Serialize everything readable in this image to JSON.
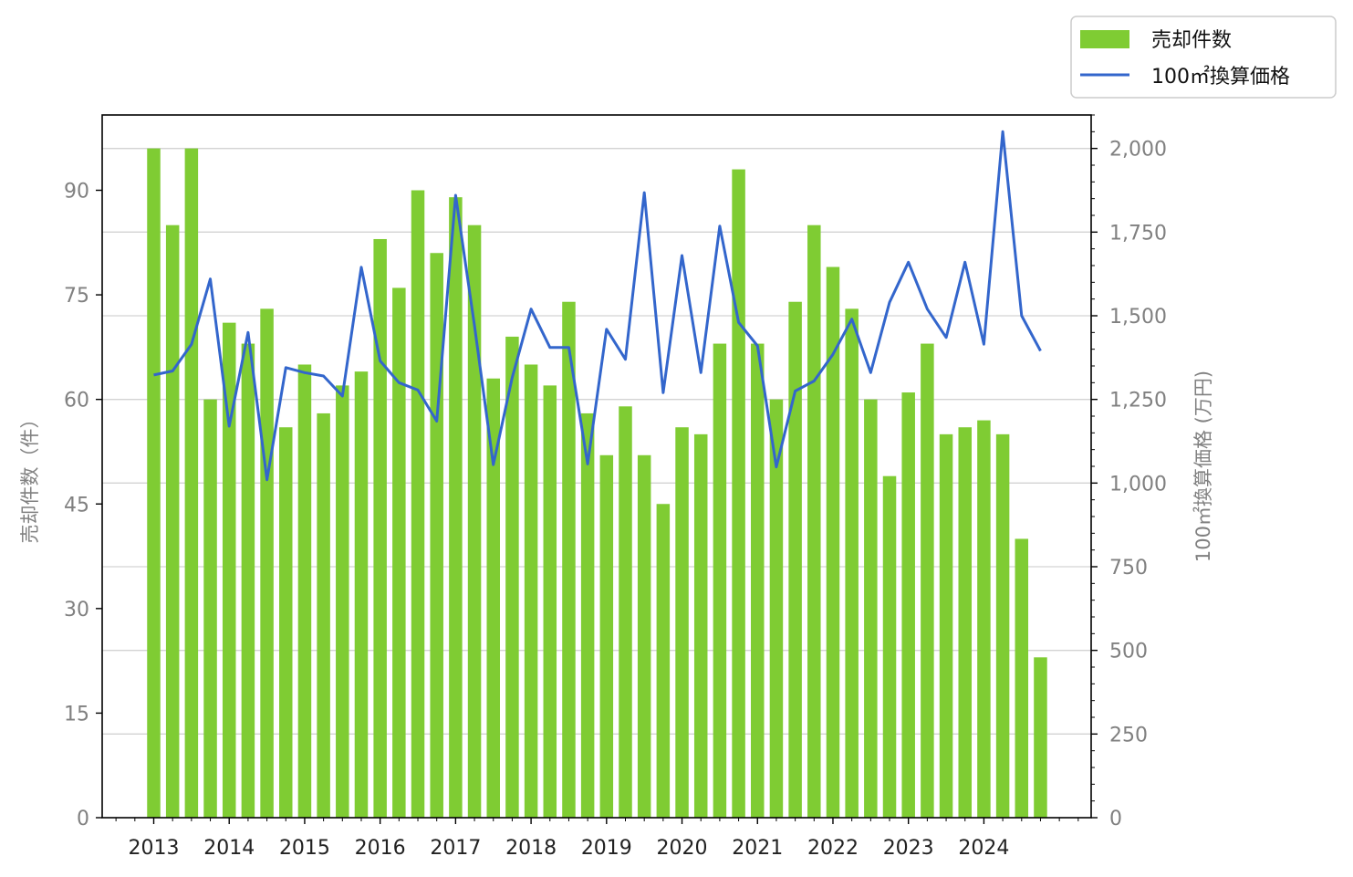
{
  "chart_data": {
    "type": "bar",
    "x_tick_labels": [
      "2013",
      "2014",
      "2015",
      "2016",
      "2017",
      "2018",
      "2019",
      "2020",
      "2021",
      "2022",
      "2023",
      "2024"
    ],
    "ylabel": "売却件数（件）",
    "y2label": "100㎡換算価格 (万円)",
    "ylim": [
      0,
      100.8
    ],
    "y2lim": [
      0,
      2100
    ],
    "y_ticks": [
      "0",
      "15",
      "30",
      "45",
      "60",
      "75",
      "90"
    ],
    "y2_ticks": [
      "0",
      "250",
      "500",
      "750",
      "1,000",
      "1,250",
      "1,500",
      "1,750",
      "2,000"
    ],
    "grid": "horizontal (right axis)",
    "legend_position": "top-right, outside plot",
    "colors": {
      "bar": "#7fcc33",
      "line": "#3366cc"
    },
    "series": [
      {
        "name": "売却件数",
        "type": "bar",
        "axis": "left",
        "values": [
          96,
          85,
          96,
          60,
          71,
          68,
          73,
          56,
          65,
          58,
          62,
          64,
          83,
          76,
          90,
          81,
          89,
          85,
          63,
          69,
          65,
          62,
          74,
          58,
          52,
          59,
          52,
          45,
          56,
          55,
          68,
          93,
          68,
          60,
          74,
          85,
          79,
          73,
          60,
          49,
          61,
          68,
          55,
          56,
          57,
          55,
          40,
          23
        ]
      },
      {
        "name": "100㎡換算価格",
        "type": "line",
        "axis": "right",
        "values": [
          1323,
          1335,
          1415,
          1610,
          1170,
          1450,
          1010,
          1345,
          1330,
          1320,
          1260,
          1645,
          1365,
          1300,
          1278,
          1185,
          1860,
          1470,
          1055,
          1315,
          1520,
          1405,
          1405,
          1057,
          1460,
          1370,
          1868,
          1270,
          1680,
          1330,
          1768,
          1480,
          1410,
          1048,
          1275,
          1305,
          1385,
          1490,
          1330,
          1540,
          1660,
          1520,
          1435,
          1660,
          1415,
          2050,
          1500,
          1395
        ]
      }
    ]
  }
}
